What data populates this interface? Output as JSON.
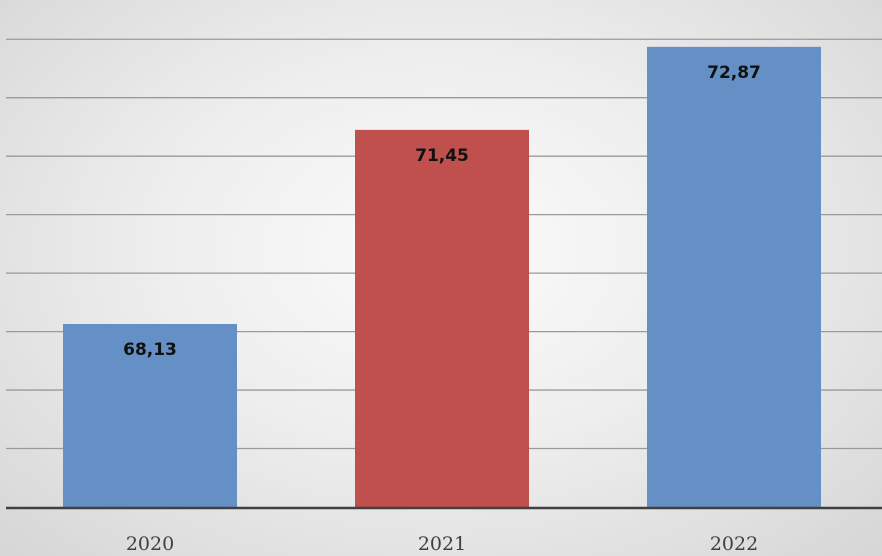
{
  "chart_data": {
    "type": "bar",
    "categories": [
      "2020",
      "2021",
      "2022"
    ],
    "values": [
      68.13,
      71.45,
      72.87
    ],
    "value_labels": [
      "68,13",
      "71,45",
      "72,87"
    ],
    "bar_colors": [
      "#6490c6",
      "#c0504d",
      "#6490c6"
    ],
    "title": "",
    "xlabel": "",
    "ylabel": "",
    "ylim": [
      65,
      73.5
    ],
    "grid_step": 1,
    "grid": true,
    "legend": "none"
  },
  "colors": {
    "gridline": "#9a9a9a",
    "axis": "#404040"
  }
}
